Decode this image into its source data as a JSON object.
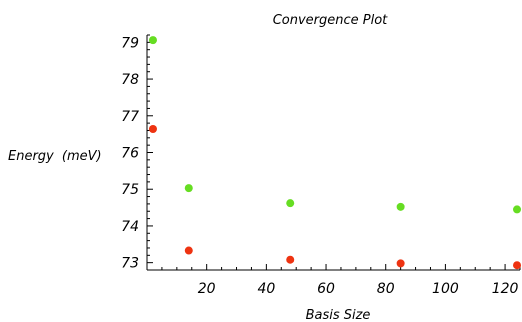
{
  "chart_data": {
    "type": "scatter",
    "title": "Convergence Plot",
    "xlabel": "Basis Size",
    "ylabel_main": "Energy",
    "ylabel_unit": "(meV)",
    "xlim": [
      0,
      125
    ],
    "ylim": [
      72.8,
      79.2
    ],
    "xticks": [
      20,
      40,
      60,
      80,
      100,
      120
    ],
    "yticks": [
      73,
      74,
      75,
      76,
      77,
      78,
      79
    ],
    "x_minor_step": 5,
    "y_minor_step": 0.2,
    "series": [
      {
        "color": "#66dd22",
        "x": [
          2,
          14,
          48,
          85,
          124
        ],
        "y": [
          79.06,
          75.03,
          74.62,
          74.52,
          74.45
        ]
      },
      {
        "color": "#ee3311",
        "x": [
          2,
          14,
          48,
          85,
          124
        ],
        "y": [
          76.64,
          73.33,
          73.08,
          72.98,
          72.93
        ]
      }
    ]
  }
}
